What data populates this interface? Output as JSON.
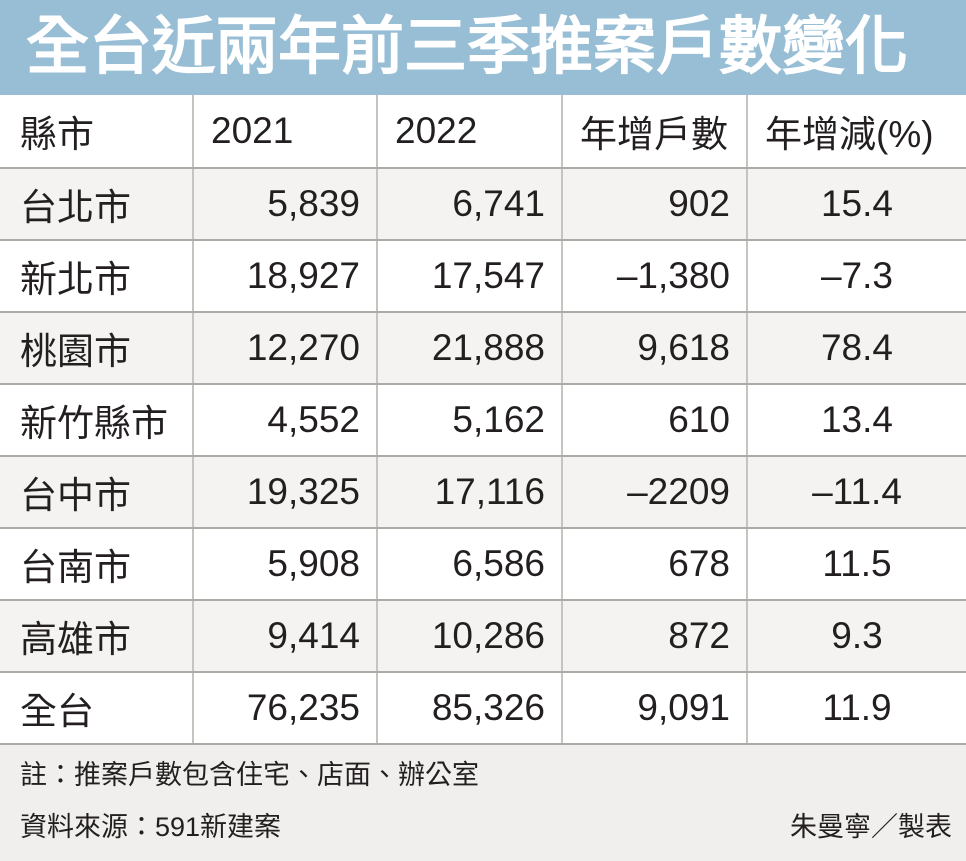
{
  "title": "全台近兩年前三季推案戶數變化",
  "chart_data": {
    "type": "table",
    "title": "全台近兩年前三季推案戶數變化",
    "columns": [
      "縣市",
      "2021",
      "2022",
      "年增戶數",
      "年增減(%)"
    ],
    "rows": [
      [
        "台北市",
        "5,839",
        "6,741",
        "902",
        "15.4"
      ],
      [
        "新北市",
        "18,927",
        "17,547",
        "–1,380",
        "–7.3"
      ],
      [
        "桃園市",
        "12,270",
        "21,888",
        "9,618",
        "78.4"
      ],
      [
        "新竹縣市",
        "4,552",
        "5,162",
        "610",
        "13.4"
      ],
      [
        "台中市",
        "19,325",
        "17,116",
        "–2209",
        "–11.4"
      ],
      [
        "台南市",
        "5,908",
        "6,586",
        "678",
        "11.5"
      ],
      [
        "高雄市",
        "9,414",
        "10,286",
        "872",
        "9.3"
      ],
      [
        "全台",
        "76,235",
        "85,326",
        "9,091",
        "11.9"
      ]
    ]
  },
  "footer": {
    "note": "註：推案戶數包含住宅、店面、辦公室",
    "source": "資料來源：591新建案",
    "credit": "朱曼寧／製表"
  },
  "colors": {
    "title_bg": "#97bed5",
    "title_text": "#ffffff",
    "row_stripe": "#f4f3f1",
    "footer_bg": "#f0efed",
    "grid_line_horizontal": "#aeaaa6",
    "grid_line_vertical": "#c7c4c0",
    "text": "#231f20"
  }
}
